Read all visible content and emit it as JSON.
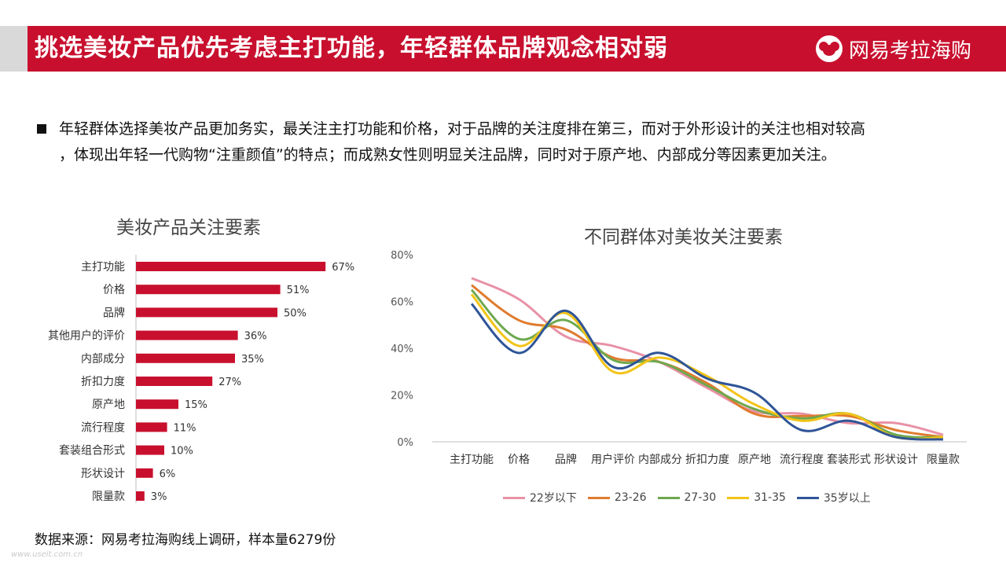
{
  "header": {
    "title": "挑选美妆产品优先考虑主打功能，年轻群体品牌观念相对弱",
    "brand": "网易考拉海购",
    "brand_icon": "koala-logo-icon",
    "accent_color": "#c8102e"
  },
  "description": {
    "line1": "年轻群体选择美妆产品更加务实，最关注主打功能和价格，对于品牌的关注度排在第三，而对于外形设计的关注也相对较高",
    "line2": "，体现出年轻一代购物“注重颜值”的特点；而成熟女性则明显关注品牌，同时对于原产地、内部成分等因素更加关注。"
  },
  "chart_data": [
    {
      "type": "bar",
      "orientation": "horizontal",
      "title": "美妆产品关注要素",
      "categories": [
        "主打功能",
        "价格",
        "品牌",
        "其他用户的评价",
        "内部成分",
        "折扣力度",
        "原产地",
        "流行程度",
        "套装组合形式",
        "形状设计",
        "限量款"
      ],
      "values": [
        67,
        51,
        50,
        36,
        35,
        27,
        15,
        11,
        10,
        6,
        3
      ],
      "value_labels": [
        "67%",
        "51%",
        "50%",
        "36%",
        "35%",
        "27%",
        "15%",
        "11%",
        "10%",
        "6%",
        "3%"
      ],
      "unit": "%",
      "color": "#c8102e"
    },
    {
      "type": "line",
      "title": "不同群体对美妆关注要素",
      "categories": [
        "主打功能",
        "价格",
        "品牌",
        "用户评价",
        "内部成分",
        "折扣力度",
        "原产地",
        "流行程度",
        "套装形式",
        "形状设计",
        "限量款"
      ],
      "ylim": [
        0,
        80
      ],
      "yticks": [
        "0%",
        "20%",
        "40%",
        "60%",
        "80%"
      ],
      "grid": false,
      "legend_position": "bottom",
      "series": [
        {
          "name": "22岁以下",
          "color": "#e891a6",
          "values": [
            70,
            61,
            45,
            41,
            34,
            23,
            13,
            12,
            8,
            8,
            3
          ]
        },
        {
          "name": "23-26",
          "color": "#e07b2f",
          "values": [
            67,
            52,
            48,
            36,
            34,
            25,
            12,
            11,
            11,
            5,
            2
          ]
        },
        {
          "name": "27-30",
          "color": "#6ea84e",
          "values": [
            65,
            44,
            52,
            35,
            34,
            24,
            14,
            10,
            12,
            3,
            2
          ]
        },
        {
          "name": "31-35",
          "color": "#f2c418",
          "values": [
            63,
            41,
            55,
            30,
            36,
            28,
            16,
            9,
            12,
            2,
            2
          ]
        },
        {
          "name": "35岁以上",
          "color": "#2f5597",
          "values": [
            59,
            38,
            56,
            32,
            38,
            27,
            21,
            5,
            9,
            2,
            1
          ]
        }
      ]
    }
  ],
  "source": "数据来源：网易考拉海购线上调研，样本量6279份",
  "watermark": "www.useit.com.cn"
}
